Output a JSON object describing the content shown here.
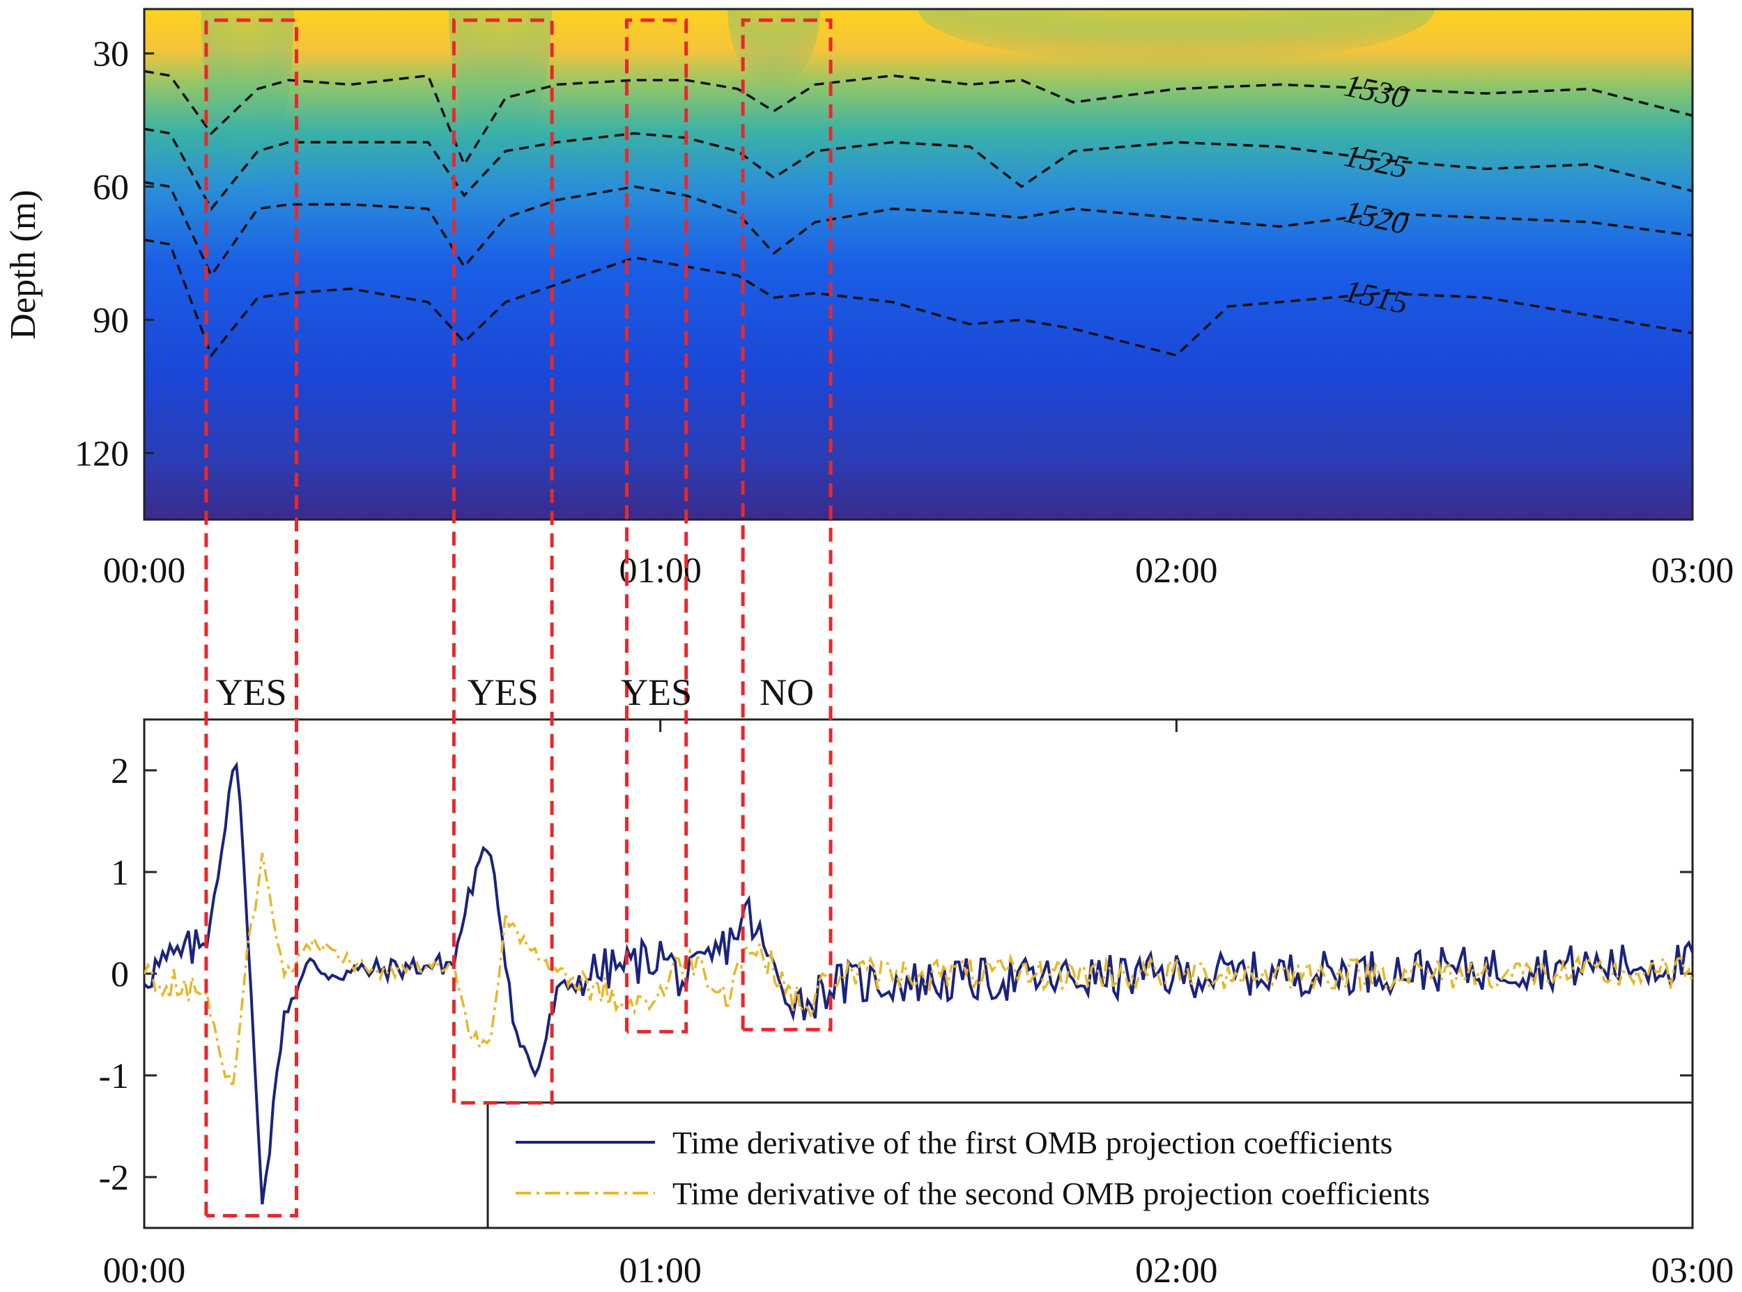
{
  "chart_data": [
    {
      "type": "heatmap",
      "title": "",
      "xlabel": "",
      "ylabel": "Depth (m)",
      "x_tick_labels": [
        "00:00",
        "01:00",
        "02:00",
        "03:00"
      ],
      "x_range_hours": [
        0,
        3
      ],
      "y_ticks": [
        30,
        60,
        90,
        120
      ],
      "ylim": [
        20,
        135
      ],
      "y_reversed": true,
      "color_scale": [
        "#3a2b8c",
        "#1a3fd0",
        "#1e6fe6",
        "#22a6b5",
        "#5bbf8a",
        "#c8c23a",
        "#ffd21f",
        "#ffff30"
      ],
      "contours": [
        {
          "label": "1530",
          "t": [
            0,
            0.05,
            0.13,
            0.22,
            0.28,
            0.4,
            0.55,
            0.62,
            0.7,
            0.8,
            0.95,
            1.05,
            1.15,
            1.22,
            1.3,
            1.45,
            1.6,
            1.7,
            1.8,
            2.0,
            2.2,
            2.4,
            2.6,
            2.8,
            3.0
          ],
          "depth": [
            34,
            35,
            48,
            38,
            36,
            37,
            35,
            55,
            40,
            37,
            36,
            36,
            38,
            43,
            37,
            35,
            37,
            36,
            41,
            38,
            37,
            38,
            39,
            38,
            44
          ]
        },
        {
          "label": "1525",
          "t": [
            0,
            0.05,
            0.13,
            0.22,
            0.28,
            0.4,
            0.55,
            0.62,
            0.7,
            0.8,
            0.95,
            1.05,
            1.15,
            1.22,
            1.3,
            1.45,
            1.6,
            1.7,
            1.8,
            2.0,
            2.2,
            2.4,
            2.6,
            2.8,
            3.0
          ],
          "depth": [
            47,
            48,
            65,
            52,
            50,
            50,
            50,
            62,
            52,
            50,
            48,
            49,
            52,
            58,
            52,
            50,
            51,
            60,
            52,
            50,
            51,
            54,
            56,
            55,
            61
          ]
        },
        {
          "label": "1520",
          "t": [
            0,
            0.05,
            0.13,
            0.22,
            0.28,
            0.4,
            0.55,
            0.62,
            0.7,
            0.8,
            0.95,
            1.05,
            1.15,
            1.22,
            1.3,
            1.45,
            1.6,
            1.7,
            1.8,
            2.0,
            2.2,
            2.4,
            2.6,
            2.8,
            3.0
          ],
          "depth": [
            59,
            60,
            80,
            65,
            64,
            64,
            65,
            78,
            67,
            63,
            60,
            62,
            66,
            75,
            68,
            65,
            66,
            67,
            65,
            67,
            69,
            66,
            67,
            68,
            71
          ]
        },
        {
          "label": "1515",
          "t": [
            0,
            0.05,
            0.13,
            0.22,
            0.28,
            0.4,
            0.55,
            0.62,
            0.7,
            0.8,
            0.95,
            1.05,
            1.15,
            1.22,
            1.3,
            1.45,
            1.6,
            1.7,
            1.8,
            2.0,
            2.1,
            2.2,
            2.4,
            2.6,
            2.8,
            3.0
          ],
          "depth": [
            72,
            73,
            98,
            85,
            84,
            83,
            86,
            95,
            86,
            82,
            76,
            78,
            80,
            85,
            84,
            86,
            91,
            90,
            92,
            98,
            87,
            86,
            84,
            85,
            89,
            93
          ]
        }
      ]
    },
    {
      "type": "line",
      "title": "",
      "xlabel": "",
      "ylabel": "",
      "x_tick_labels": [
        "00:00",
        "01:00",
        "02:00",
        "03:00"
      ],
      "x_range_hours": [
        0,
        3
      ],
      "y_ticks": [
        -2,
        -1,
        0,
        1,
        2
      ],
      "ylim": [
        -2.5,
        2.5
      ],
      "legend_position": "bottom-right",
      "series": [
        {
          "name": "Time derivative of the first OMB projection coefficients",
          "color": "#1a237e",
          "style": "solid",
          "key_t": [
            0,
            0.12,
            0.18,
            0.23,
            0.27,
            0.32,
            0.36,
            0.6,
            0.63,
            0.67,
            0.72,
            0.76,
            0.8,
            0.86,
            0.95,
            1.0,
            1.05,
            1.13,
            1.17,
            1.23,
            1.28,
            1.33,
            3.0
          ],
          "key_v": [
            0,
            0.3,
            2.2,
            -2.3,
            -0.4,
            0.1,
            0.0,
            0.1,
            0.8,
            1.3,
            -0.6,
            -1.0,
            -0.2,
            0.0,
            0.1,
            0.2,
            -0.1,
            0.3,
            0.6,
            -0.1,
            -0.3,
            -0.1,
            0.1
          ],
          "noise": 0.22
        },
        {
          "name": "Time derivative of the second OMB projection coefficients",
          "color": "#e8b62a",
          "style": "dashdot",
          "key_t": [
            0,
            0.12,
            0.17,
            0.2,
            0.23,
            0.27,
            0.33,
            0.45,
            0.6,
            0.63,
            0.67,
            0.7,
            0.75,
            0.8,
            0.95,
            1.0,
            1.05,
            1.13,
            1.17,
            1.23,
            1.28,
            1.33,
            3.0
          ],
          "key_v": [
            0,
            -0.2,
            -1.2,
            0.2,
            1.2,
            0.0,
            0.3,
            0.0,
            0.1,
            -0.6,
            -0.7,
            0.6,
            0.2,
            0.0,
            -0.3,
            -0.2,
            0.2,
            -0.2,
            0.3,
            0.0,
            -0.4,
            0.0,
            0.0
          ],
          "noise": 0.16
        }
      ]
    }
  ],
  "detections": [
    {
      "label": "YES",
      "t_start": 0.12,
      "t_end": 0.295
    },
    {
      "label": "YES",
      "t_start": 0.6,
      "t_end": 0.79
    },
    {
      "label": "YES",
      "t_start": 0.935,
      "t_end": 1.05
    },
    {
      "label": "NO",
      "t_start": 1.16,
      "t_end": 1.33
    }
  ],
  "colors": {
    "highlight_box": "#e8282b",
    "contour": "#111111",
    "axis": "#222222"
  }
}
